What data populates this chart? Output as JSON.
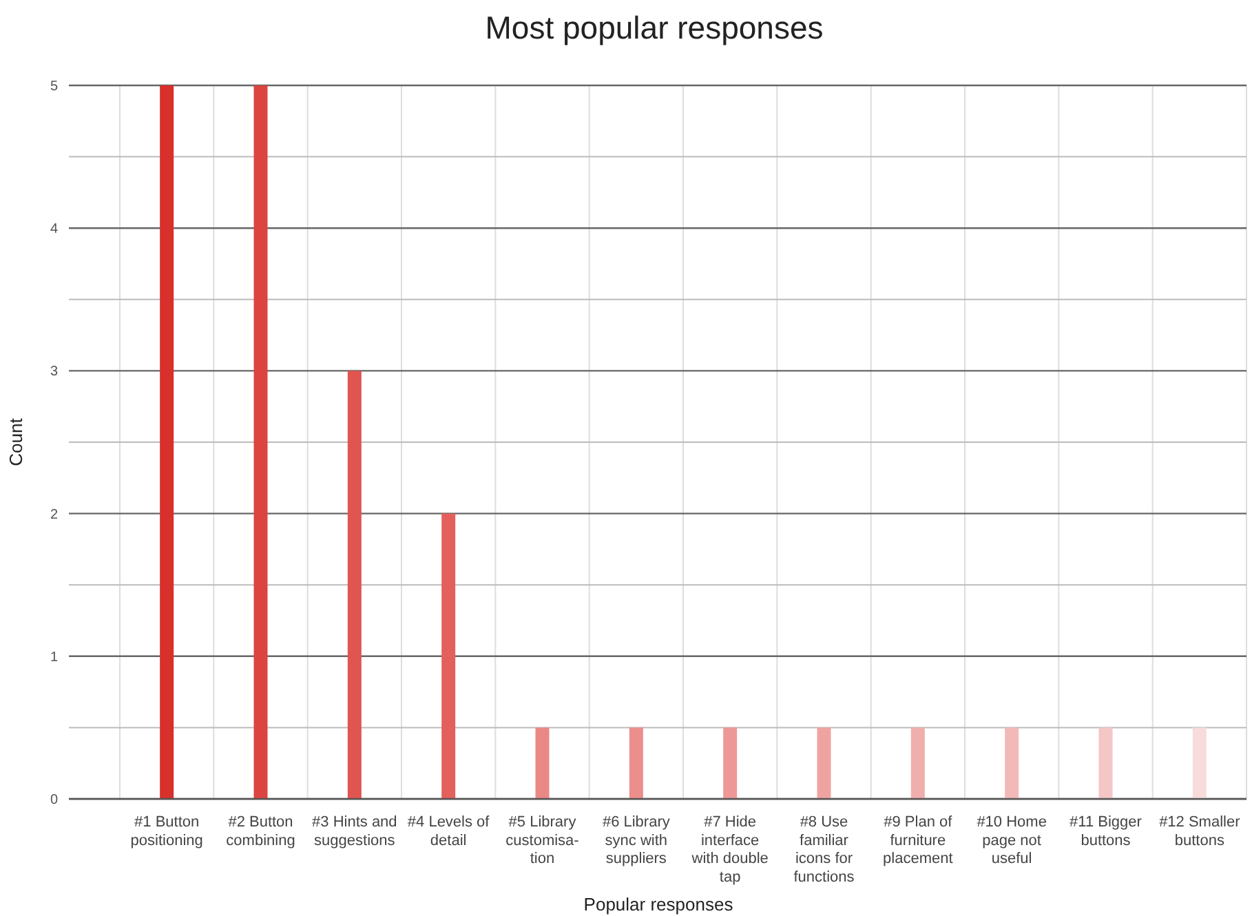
{
  "chart_data": {
    "type": "bar",
    "title": "Most popular responses",
    "xlabel": "Popular responses",
    "ylabel": "Count",
    "categories": [
      "#1 Button\npositioning",
      "#2 Button\ncombining",
      "#3 Hints and\nsuggestions",
      "#4 Levels of\ndetail",
      "#5 Library\ncustomisa-\ntion",
      "#6 Library\nsync with\nsuppliers",
      "#7 Hide\ninterface\nwith double\ntap",
      "#8 Use\nfamiliar\nicons for\nfunctions",
      "#9 Plan of\nfurniture\nplacement",
      "#10 Home\npage not\nuseful",
      "#11 Bigger\nbuttons",
      "#12 Smaller\nbuttons"
    ],
    "values": [
      5,
      5,
      3,
      2,
      0.5,
      0.5,
      0.5,
      0.5,
      0.5,
      0.5,
      0.5,
      0.5
    ],
    "colors": [
      "#d8302b",
      "#dc4440",
      "#e05550",
      "#e4605c",
      "#ea8886",
      "#eb8e8c",
      "#ed9896",
      "#efa3a1",
      "#f0aeac",
      "#f2b9b8",
      "#f4c6c5",
      "#f7dcdb"
    ],
    "ylim": [
      0,
      5
    ],
    "yticks": [
      0,
      {
        "value": 0.5,
        "label": null
      },
      1,
      {
        "value": 1.5,
        "label": null
      },
      2,
      {
        "value": 2.5,
        "label": null
      },
      3,
      {
        "value": 3.5,
        "label": null
      },
      4,
      {
        "value": 4.5,
        "label": null
      },
      5
    ],
    "grid": true
  }
}
